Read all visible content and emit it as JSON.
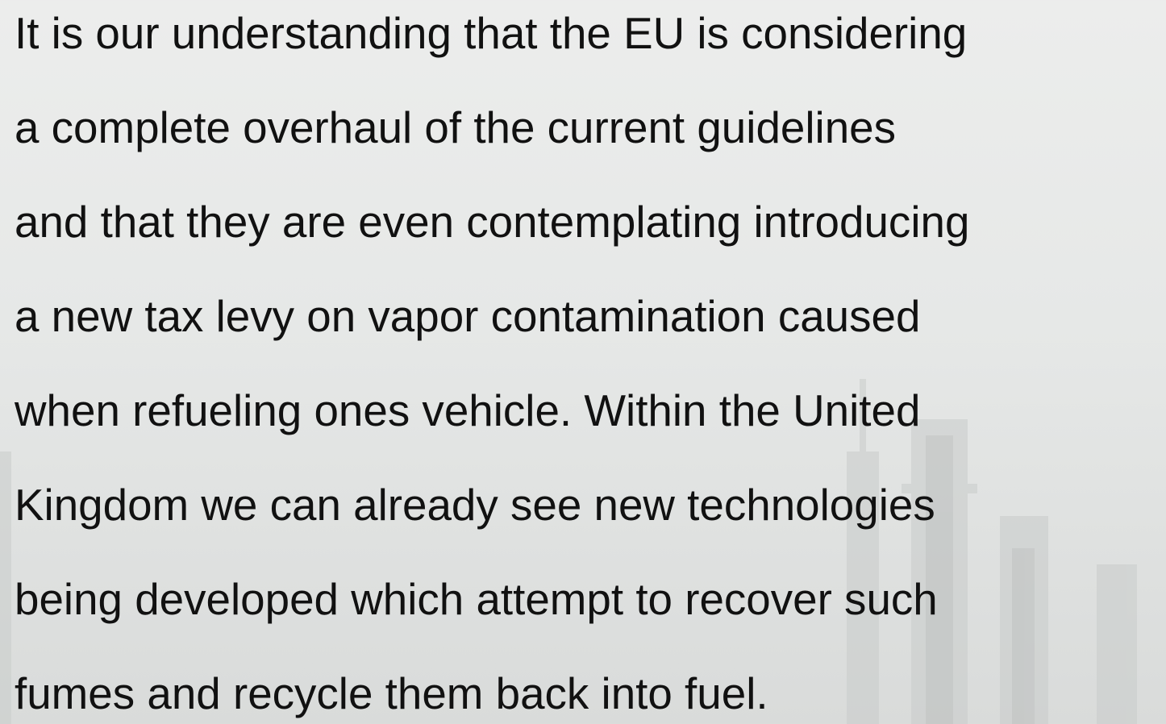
{
  "paragraph": {
    "lines": [
      "It is our understanding that the EU is considering",
      "a complete overhaul of the current guidelines",
      "and that they are even contemplating introducing",
      "a new tax levy on vapor contamination caused",
      "when refueling ones vehicle. Within the United",
      "Kingdom we can already see new technologies",
      "being developed which attempt to recover such",
      "fumes and recycle them back into fuel."
    ]
  }
}
